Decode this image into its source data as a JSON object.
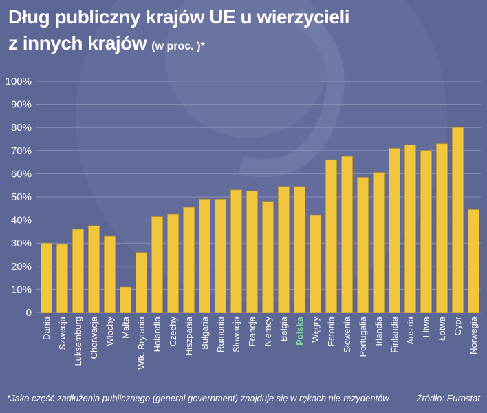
{
  "title": {
    "line1": "Dług publiczny krajów UE u wierzycieli",
    "line2": "z innych krajów",
    "unit": "(w proc. )*"
  },
  "colors": {
    "background": "#5e6695",
    "bar": "#f2c63c",
    "bar_stroke": "#b8952a",
    "highlight_label": "#7fd6a0",
    "grid": "#8a90b6"
  },
  "chart_data": {
    "type": "bar",
    "categories": [
      "Dania",
      "Szwecja",
      "Luksemburg",
      "Chorwacja",
      "Włochy",
      "Malta",
      "Wlk. Brytania",
      "Holandia",
      "Czechy",
      "Hiszpania",
      "Bułgaria",
      "Rumunia",
      "Słowacja",
      "Francja",
      "Niemcy",
      "Belgia",
      "Polska",
      "Węgry",
      "Estonia",
      "Słowenia",
      "Portugalia",
      "Irlandia",
      "Finlandia",
      "Austria",
      "Litwa",
      "Łotwa",
      "Cypr",
      "Norwegia"
    ],
    "values": [
      30,
      29.5,
      36,
      37.5,
      33,
      11,
      26,
      41.5,
      42.5,
      45.5,
      49,
      49,
      53,
      52.5,
      48,
      54.5,
      54.5,
      42,
      66,
      67.5,
      58.5,
      60.5,
      71,
      72.5,
      70,
      73,
      80,
      44.5
    ],
    "highlight": "Polska",
    "ylim": [
      0,
      100
    ],
    "yticks": [
      "0",
      "10%",
      "20%",
      "30%",
      "40%",
      "50%",
      "60%",
      "70%",
      "80%",
      "90%",
      "100%"
    ],
    "grid": true
  },
  "footer": {
    "footnote": "*Jaka część zadłużenia publicznego (general government) znajduje się w rękach nie-rezydentów",
    "source": "Źródło: Eurostat"
  }
}
